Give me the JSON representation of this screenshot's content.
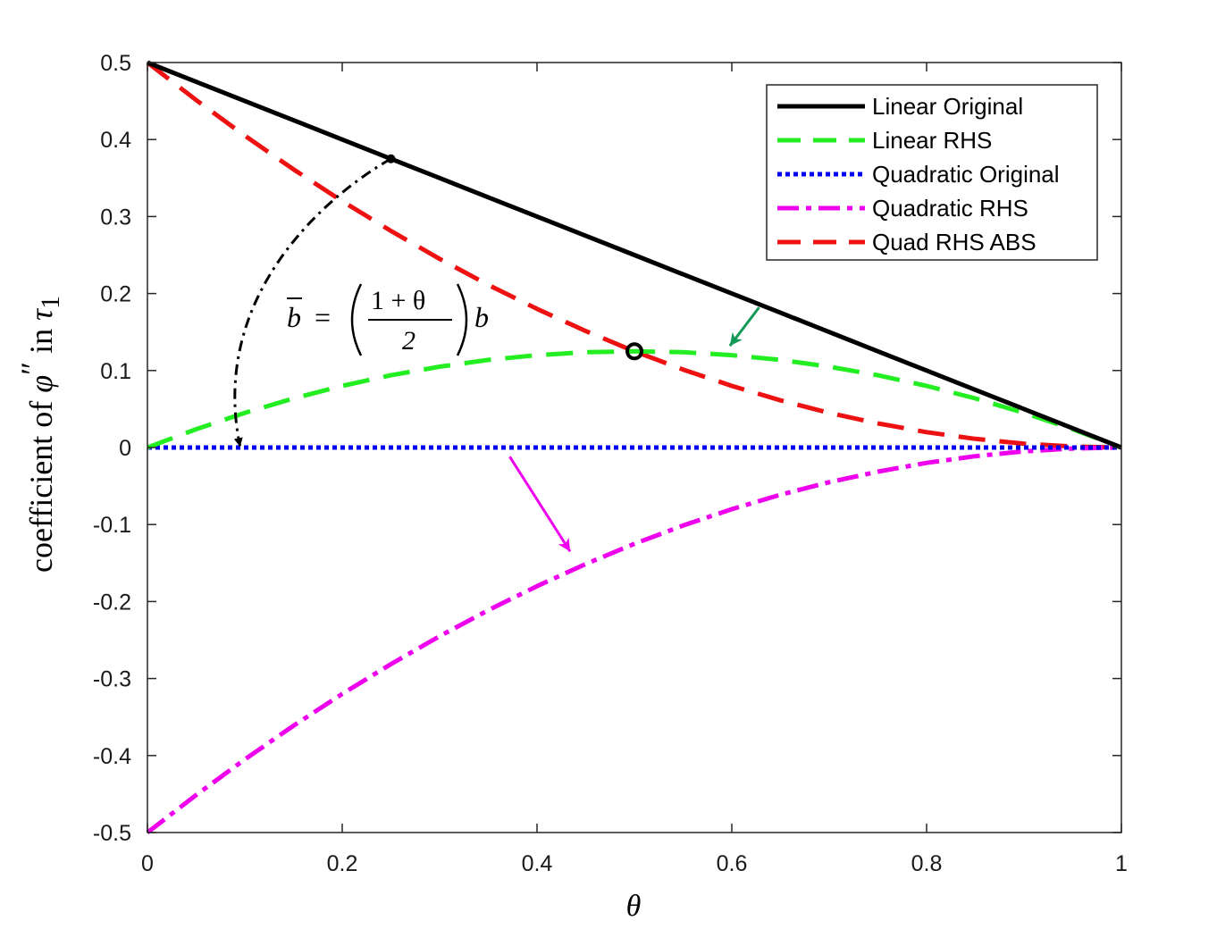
{
  "chart_data": {
    "type": "line",
    "title": "",
    "xlabel": "θ",
    "ylabel_parts": {
      "prefix": "coefficient of ",
      "phi": "φ",
      "primes": "″",
      "mid": " in ",
      "tau": "τ",
      "sub": "1"
    },
    "xlim": [
      0,
      1
    ],
    "ylim": [
      -0.5,
      0.5
    ],
    "x_ticks": [
      0,
      0.2,
      0.4,
      0.6,
      0.8,
      1
    ],
    "x_tick_labels": [
      "0",
      "0.2",
      "0.4",
      "0.6",
      "0.8",
      "1"
    ],
    "y_ticks": [
      0.5,
      0.4,
      0.3,
      0.2,
      0.1,
      0,
      -0.1,
      -0.2,
      -0.3,
      -0.4,
      -0.5
    ],
    "y_tick_labels": [
      "0.5",
      "0.4",
      "0.3",
      "0.2",
      "0.1",
      "0",
      "-0.1",
      "-0.2",
      "-0.3",
      "-0.4",
      "-0.5"
    ],
    "grid": false,
    "legend_position": "top-right",
    "x": [
      0,
      0.05,
      0.1,
      0.15,
      0.2,
      0.25,
      0.3,
      0.35,
      0.4,
      0.45,
      0.5,
      0.55,
      0.6,
      0.65,
      0.7,
      0.75,
      0.8,
      0.85,
      0.9,
      0.95,
      1
    ],
    "series": [
      {
        "name": "Linear Original",
        "color": "#000000",
        "style": "solid",
        "values": [
          0.5,
          0.475,
          0.45,
          0.425,
          0.4,
          0.375,
          0.35,
          0.325,
          0.3,
          0.275,
          0.25,
          0.225,
          0.2,
          0.175,
          0.15,
          0.125,
          0.1,
          0.075,
          0.05,
          0.025,
          0
        ]
      },
      {
        "name": "Linear RHS",
        "color": "#22ee22",
        "style": "dashed",
        "values": [
          0,
          0.0238,
          0.045,
          0.0638,
          0.08,
          0.0938,
          0.105,
          0.1138,
          0.12,
          0.1238,
          0.125,
          0.1238,
          0.12,
          0.1138,
          0.105,
          0.0938,
          0.08,
          0.0638,
          0.045,
          0.0238,
          0
        ]
      },
      {
        "name": "Quadratic Original",
        "color": "#0000ee",
        "style": "dotted",
        "values": [
          0,
          0,
          0,
          0,
          0,
          0,
          0,
          0,
          0,
          0,
          0,
          0,
          0,
          0,
          0,
          0,
          0,
          0,
          0,
          0,
          0
        ]
      },
      {
        "name": "Quadratic RHS",
        "color": "#ee00ee",
        "style": "dashdot",
        "values": [
          -0.5,
          -0.4513,
          -0.405,
          -0.3613,
          -0.32,
          -0.2813,
          -0.245,
          -0.2113,
          -0.18,
          -0.1513,
          -0.125,
          -0.1013,
          -0.08,
          -0.0613,
          -0.045,
          -0.0313,
          -0.02,
          -0.0113,
          -0.005,
          -0.0013,
          0
        ]
      },
      {
        "name": "Quad RHS ABS",
        "color": "#ee1111",
        "style": "dashed",
        "values": [
          0.5,
          0.4513,
          0.405,
          0.3613,
          0.32,
          0.2813,
          0.245,
          0.2113,
          0.18,
          0.1513,
          0.125,
          0.1013,
          0.08,
          0.0613,
          0.045,
          0.0313,
          0.02,
          0.0113,
          0.005,
          0.0013,
          0
        ]
      }
    ],
    "annotations": {
      "formula": {
        "lhs": "b",
        "eq": "=",
        "num": "1 + θ",
        "den": "2",
        "rhs": "b"
      },
      "markers": [
        {
          "x": 0.25,
          "y": 0.375,
          "kind": "dot"
        },
        {
          "x": 0.5,
          "y": 0.125,
          "kind": "circle"
        }
      ],
      "curved_arrow": {
        "from": [
          0.25,
          0.375
        ],
        "to": [
          0.095,
          0.002
        ]
      },
      "arrows": [
        {
          "color": "#119955",
          "from": [
            0.628,
            0.182
          ],
          "to": [
            0.598,
            0.132
          ]
        },
        {
          "color": "#ee00ee",
          "from": [
            0.372,
            -0.012
          ],
          "to": [
            0.434,
            -0.135
          ]
        }
      ]
    }
  }
}
